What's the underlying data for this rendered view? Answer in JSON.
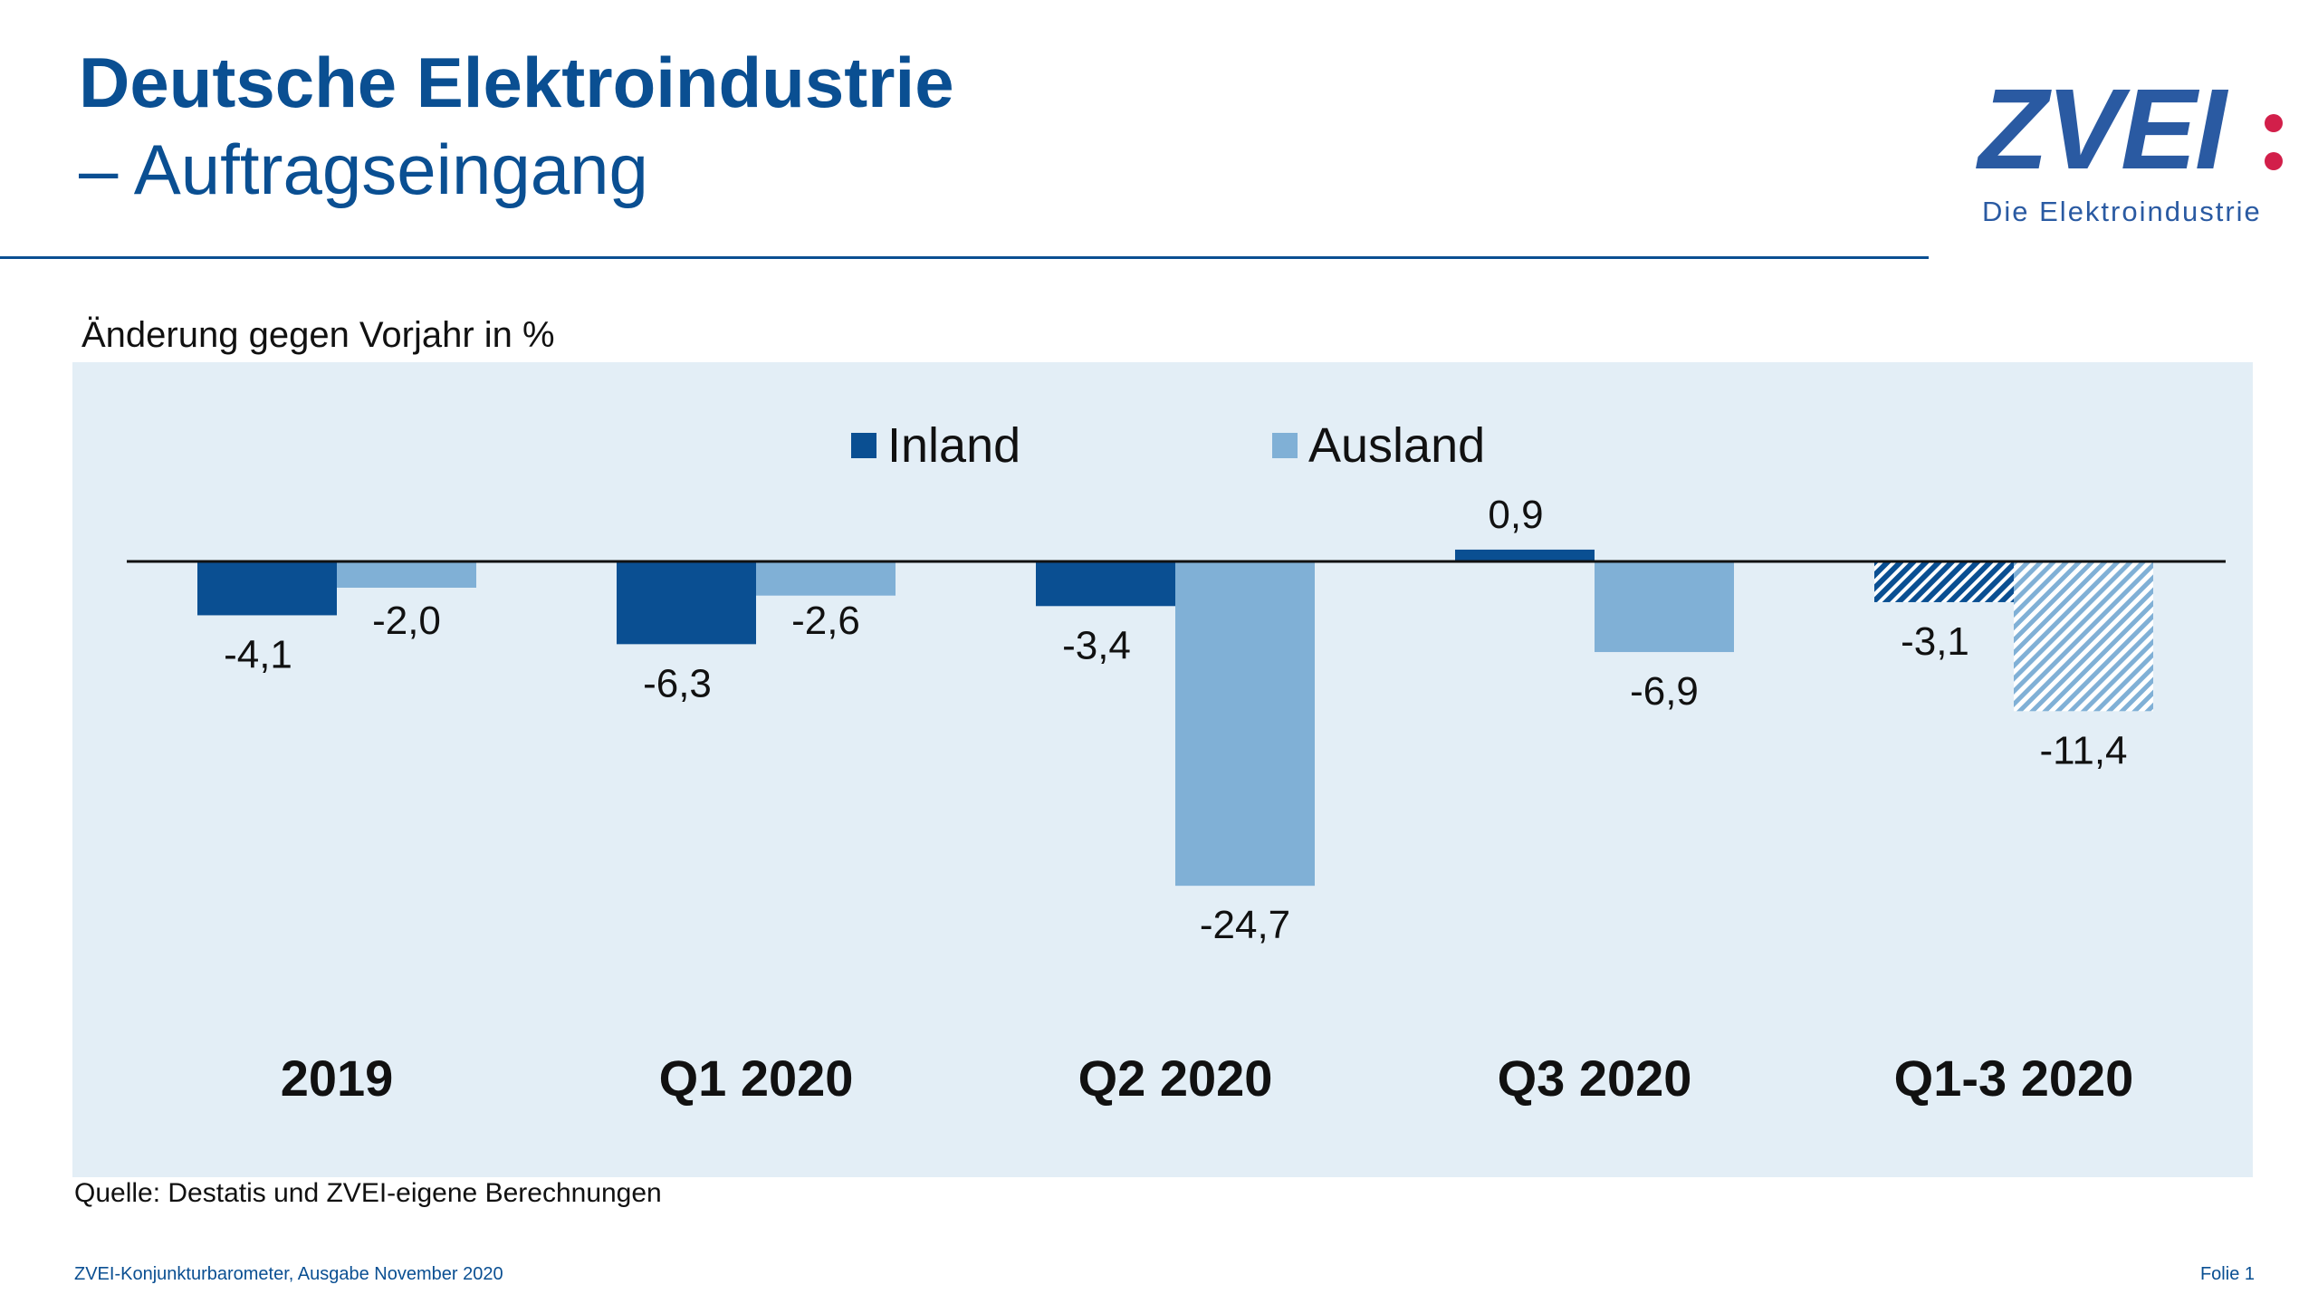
{
  "header": {
    "title": "Deutsche Elektroindustrie",
    "subtitle": "– Auftragseingang"
  },
  "logo": {
    "wordmark": "ZVEI",
    "tagline": "Die Elektroindustrie"
  },
  "source": "Quelle: Destatis und ZVEI-eigene Berechnungen",
  "footer": {
    "left": "ZVEI-Konjunkturbarometer, Ausgabe November 2020",
    "right": "Folie 1"
  },
  "colors": {
    "brand_blue": "#0a4f92",
    "inland": "#0a4f92",
    "ausland": "#80b0d6",
    "panel_bg": "#e3eef6",
    "logo_dot": "#d21f4a"
  },
  "chart_data": {
    "type": "bar",
    "ylabel": "Änderung gegen Vorjahr in %",
    "categories": [
      "2019",
      "Q1 2020",
      "Q2 2020",
      "Q3 2020",
      "Q1-3 2020"
    ],
    "series": [
      {
        "name": "Inland",
        "values": [
          -4.1,
          -6.3,
          -3.4,
          0.9,
          -3.1
        ],
        "labels": [
          "-4,1",
          "-6,3",
          "-3,4",
          "0,9",
          "-3,1"
        ],
        "color": "#0a4f92"
      },
      {
        "name": "Ausland",
        "values": [
          -2.0,
          -2.6,
          -24.7,
          -6.9,
          -11.4
        ],
        "labels": [
          "-2,0",
          "-2,6",
          "-24,7",
          "-6,9",
          "-11,4"
        ],
        "color": "#80b0d6"
      }
    ],
    "hatched_categories": [
      "Q1-3 2020"
    ],
    "legend_position": "top-center",
    "grid": false
  }
}
